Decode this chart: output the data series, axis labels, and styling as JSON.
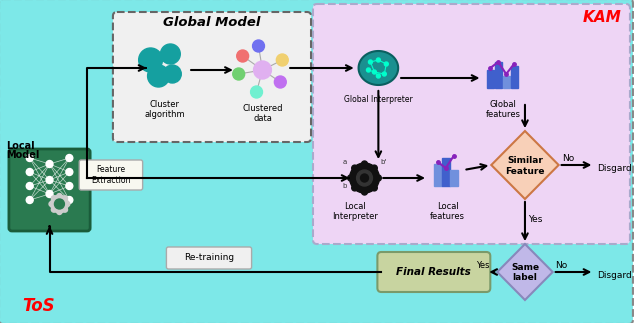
{
  "fig_width": 6.4,
  "fig_height": 3.23,
  "bg_color": "#7de8e8",
  "kam_bg": "#eed5f5",
  "global_model_bg": "#f0f0f0",
  "tos_label": "ToS",
  "kam_label": "KAM",
  "global_model_title": "Global Model"
}
